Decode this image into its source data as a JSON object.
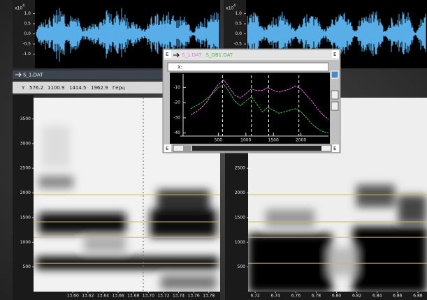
{
  "waveforms": [
    {
      "scale_base": "x10",
      "scale_exp": "4",
      "ylim": [
        -1.6,
        1.5
      ],
      "yticks": [
        {
          "value": 1,
          "label": "1.0"
        },
        {
          "value": 0.5,
          "label": "0.5"
        },
        {
          "value": 0,
          "label": "0.0"
        },
        {
          "value": -0.5,
          "label": "-0.5"
        },
        {
          "value": -1,
          "label": "-1.0"
        }
      ]
    },
    {
      "scale_base": "x10",
      "scale_exp": "4",
      "ylim": [
        -1.6,
        1.5
      ],
      "yticks": [
        {
          "value": 1,
          "label": "1.0"
        },
        {
          "value": 0.5,
          "label": "0.5"
        },
        {
          "value": 0,
          "label": "0.0"
        },
        {
          "value": -0.5,
          "label": "-0.5"
        },
        {
          "value": -1,
          "label": "-1.0"
        }
      ]
    }
  ],
  "spectrogram_window": {
    "title": "S_1.DAT",
    "cursor_label": "Y",
    "formants": [
      576.2,
      1100.9,
      1414.5,
      1962.9
    ],
    "unit": "Герц",
    "formant_color": "#c8c048"
  },
  "spectrograms": [
    {
      "ylim": [
        0,
        3930
      ],
      "yticks": [
        500,
        1000,
        1500,
        2000,
        2500,
        3000,
        3500
      ],
      "xlim": [
        13.548,
        13.795
      ],
      "xticks": [
        {
          "value": 13.6,
          "label": "13.60"
        },
        {
          "value": 13.62,
          "label": "13.62"
        },
        {
          "value": 13.64,
          "label": "13.64"
        },
        {
          "value": 13.66,
          "label": "13.66"
        },
        {
          "value": 13.68,
          "label": "13.68"
        },
        {
          "value": 13.7,
          "label": "13.70"
        },
        {
          "value": 13.72,
          "label": "13.72"
        },
        {
          "value": 13.74,
          "label": "13.74"
        },
        {
          "value": 13.76,
          "label": "13.76"
        },
        {
          "value": 13.78,
          "label": "13.78"
        }
      ]
    },
    {
      "ylim": [
        0,
        3930
      ],
      "yticks": [
        500,
        1000,
        1500,
        2000,
        2500
      ],
      "xlim": [
        6.713,
        6.889
      ],
      "xticks": [
        {
          "value": 6.72,
          "label": "6.72"
        },
        {
          "value": 6.74,
          "label": "6.74"
        },
        {
          "value": 6.76,
          "label": "6.76"
        },
        {
          "value": 6.78,
          "label": "6.78"
        },
        {
          "value": 6.8,
          "label": "6.80"
        },
        {
          "value": 6.82,
          "label": "6.82"
        },
        {
          "value": 6.84,
          "label": "6.84"
        },
        {
          "value": 6.86,
          "label": "6.86"
        },
        {
          "value": 6.88,
          "label": "6.88"
        }
      ]
    }
  ],
  "spectrum_window": {
    "corner_label": "E",
    "x_field_label": "X:",
    "chart_data": {
      "type": "line",
      "x": [
        0,
        100,
        200,
        300,
        400,
        500,
        600,
        700,
        800,
        900,
        1000,
        1100,
        1200,
        1300,
        1400,
        1500,
        1600,
        1700,
        1800,
        1900,
        2000,
        2100,
        2200,
        2300,
        2400,
        2500
      ],
      "series": [
        {
          "name": "S_1.DAT",
          "color": "#e070e0",
          "values": [
            -28,
            -26,
            -23,
            -19,
            -13,
            -8,
            -5,
            -10,
            -15,
            -17,
            -14,
            -11,
            -12,
            -12,
            -10,
            -12,
            -13,
            -12,
            -11,
            -9,
            -11,
            -15,
            -19,
            -24,
            -28,
            -31
          ]
        },
        {
          "name": "S_OB1.DAT",
          "color": "#40c040",
          "values": [
            -24,
            -22,
            -20,
            -17,
            -14,
            -10,
            -8,
            -13,
            -19,
            -22,
            -19,
            -16,
            -21,
            -26,
            -23,
            -25,
            -27,
            -26,
            -25,
            -24,
            -26,
            -30,
            -34,
            -37,
            -39,
            -40
          ]
        }
      ],
      "xlim": [
        0,
        2500
      ],
      "ylim": [
        -42,
        -2
      ],
      "xticks": [
        500,
        1000,
        1500,
        2000
      ],
      "yticks": [
        -10,
        -20,
        -30,
        -40
      ]
    }
  }
}
